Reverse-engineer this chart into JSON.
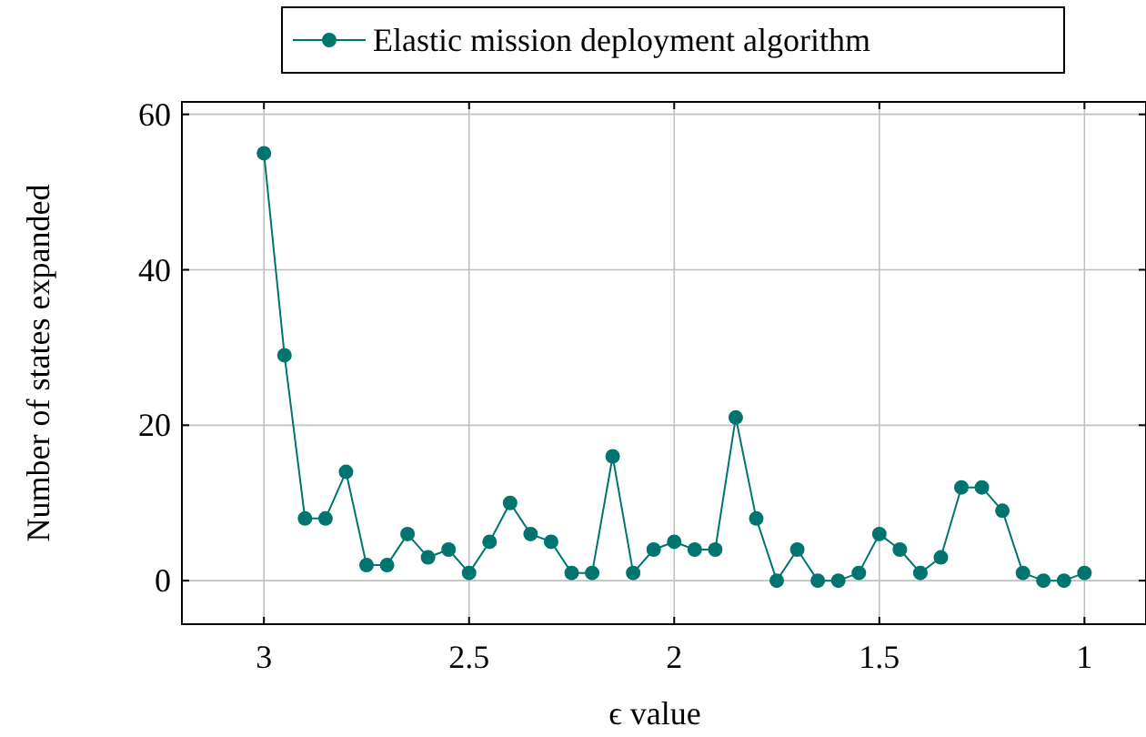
{
  "chart_data": {
    "type": "line",
    "xlabel": "ϵ value",
    "ylabel": "Number of states expanded",
    "x": [
      3,
      2.95,
      2.9,
      2.85,
      2.8,
      2.75,
      2.7,
      2.65,
      2.6,
      2.55,
      2.5,
      2.45,
      2.4,
      2.35,
      2.3,
      2.25,
      2.2,
      2.15,
      2.1,
      2.05,
      2,
      1.95,
      1.9,
      1.85,
      1.8,
      1.75,
      1.7,
      1.65,
      1.6,
      1.55,
      1.5,
      1.45,
      1.4,
      1.35,
      1.3,
      1.25,
      1.2,
      1.15,
      1.1,
      1.05,
      1
    ],
    "series": [
      {
        "name": "Elastic mission deployment algorithm",
        "color": "#00756f",
        "values": [
          55,
          29,
          8,
          8,
          14,
          2,
          2,
          6,
          3,
          4,
          1,
          5,
          10,
          6,
          5,
          1,
          1,
          16,
          1,
          4,
          5,
          4,
          4,
          21,
          8,
          0,
          4,
          0,
          0,
          1,
          6,
          4,
          1,
          3,
          12,
          12,
          9,
          1,
          0,
          0,
          1
        ]
      }
    ],
    "xlim": [
      3.2,
      0.85
    ],
    "xticks": [
      3,
      2.5,
      2,
      1.5,
      1
    ],
    "ylim": [
      -5.6,
      61.6
    ],
    "yticks": [
      0,
      20,
      40,
      60
    ],
    "grid": true,
    "legend": "top",
    "marker": "circle",
    "line_style": "solid"
  }
}
